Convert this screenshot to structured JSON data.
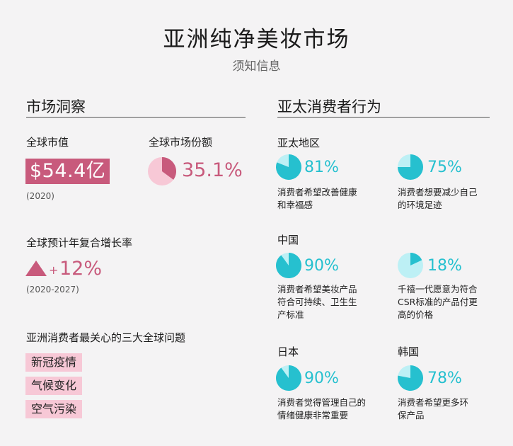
{
  "header": {
    "title": "亚洲纯净美妆市场",
    "subtitle": "须知信息"
  },
  "left": {
    "heading": "市场洞察",
    "market_value_label": "全球市值",
    "market_value": "$54.4亿",
    "market_value_year": "(2020)",
    "share_label": "全球市场份额",
    "share_value": "35.1%",
    "share_fraction": 0.351,
    "cagr_label": "全球预计年复合增长率",
    "cagr_sign": "+",
    "cagr_value": "12%",
    "cagr_years": "(2020-2027)",
    "issues_label": "亚洲消费者最关心的三大全球问题",
    "issues": [
      "新冠疫情",
      "气候变化",
      "空气污染"
    ]
  },
  "right": {
    "heading": "亚太消费者行为",
    "regions": [
      {
        "name": "亚太地区",
        "stats": [
          {
            "pct": "81%",
            "fraction": 0.81,
            "desc": [
              "消费者希望改善健康",
              "和幸福感"
            ]
          },
          {
            "pct": "75%",
            "fraction": 0.75,
            "desc": [
              "消费者想要减少自己",
              "的环境足迹"
            ]
          }
        ]
      },
      {
        "name": "中国",
        "stats": [
          {
            "pct": "90%",
            "fraction": 0.9,
            "desc": [
              "消费者希望美妆产品",
              "符合可持续、卫生生",
              "产标准"
            ]
          },
          {
            "pct": "18%",
            "fraction": 0.18,
            "desc": [
              "千禧一代愿意为符合",
              "CSR标准的产品付更",
              "高的价格"
            ]
          }
        ]
      },
      {
        "name": "日本",
        "stats": [
          {
            "pct": "90%",
            "fraction": 0.9,
            "desc": [
              "消费者觉得管理自己的",
              "情绪健康非常重要"
            ]
          }
        ]
      },
      {
        "name": "韩国",
        "stats": [
          {
            "pct": "78%",
            "fraction": 0.78,
            "desc": [
              "消费者希望更多环",
              "保产品"
            ]
          }
        ]
      }
    ]
  },
  "colors": {
    "pink": "#c85a7c",
    "light_pink": "#f7c8d6",
    "teal": "#26c0cf",
    "light_teal": "#bdf0f5"
  }
}
